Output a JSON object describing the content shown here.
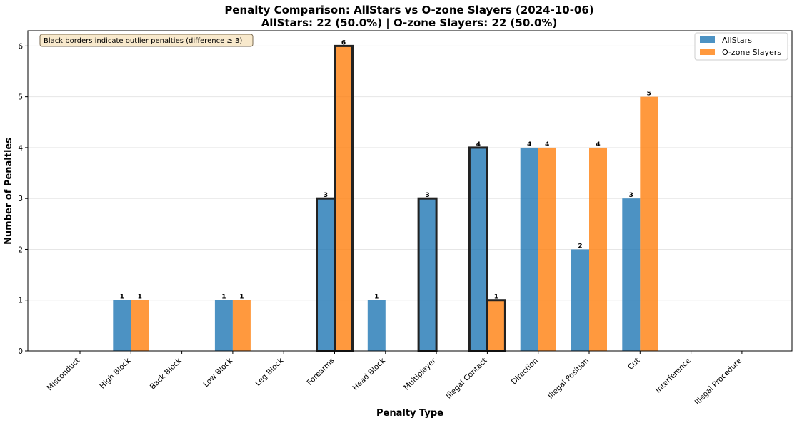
{
  "chart_data": {
    "type": "bar",
    "title": "Penalty Comparison: AllStars vs O-zone Slayers (2024-10-06)",
    "subtitle": "AllStars: 22 (50.0%) | O-zone Slayers: 22 (50.0%)",
    "xlabel": "Penalty Type",
    "ylabel": "Number of Penalties",
    "ylim": [
      0,
      6.3
    ],
    "yticks": [
      0,
      1,
      2,
      3,
      4,
      5,
      6
    ],
    "grid": "y",
    "legend_placement": "top-right",
    "annotation": "Black borders indicate outlier penalties (difference ≥ 3)",
    "categories": [
      "Misconduct",
      "High Block",
      "Back Block",
      "Low Block",
      "Leg Block",
      "Forearms",
      "Head Block",
      "Multiplayer",
      "Illegal Contact",
      "Direction",
      "Illegal Position",
      "Cut",
      "Interference",
      "Illegal Procedure"
    ],
    "outliers": [
      "Forearms",
      "Multiplayer",
      "Illegal Contact"
    ],
    "series": [
      {
        "name": "AllStars",
        "color": "#1f77b4",
        "values": [
          0,
          1,
          0,
          1,
          0,
          3,
          1,
          3,
          4,
          4,
          2,
          3,
          0,
          0
        ]
      },
      {
        "name": "O-zone Slayers",
        "color": "#ff7f0e",
        "values": [
          0,
          1,
          0,
          1,
          0,
          6,
          0,
          0,
          1,
          4,
          4,
          5,
          0,
          0
        ]
      }
    ]
  }
}
